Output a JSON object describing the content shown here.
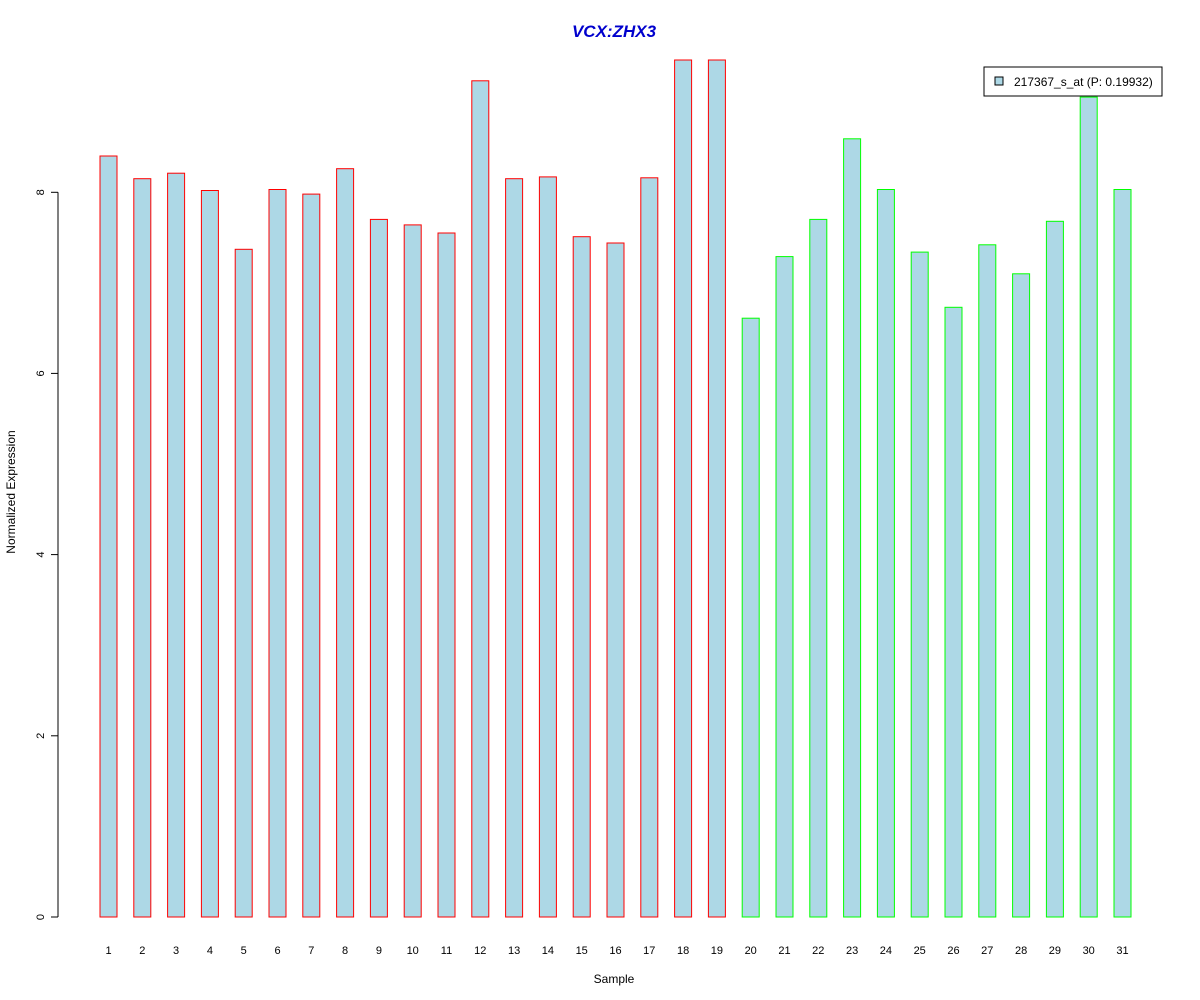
{
  "chart_data": {
    "type": "bar",
    "title": "VCX:ZHX3",
    "xlabel": "Sample",
    "ylabel": "Normalized Expression",
    "categories": [
      "1",
      "2",
      "3",
      "4",
      "5",
      "6",
      "7",
      "8",
      "9",
      "10",
      "11",
      "12",
      "13",
      "14",
      "15",
      "16",
      "17",
      "18",
      "19",
      "20",
      "21",
      "22",
      "23",
      "24",
      "25",
      "26",
      "27",
      "28",
      "29",
      "30",
      "31"
    ],
    "values": [
      8.4,
      8.15,
      8.21,
      8.02,
      7.37,
      8.03,
      7.98,
      8.26,
      7.7,
      7.64,
      7.55,
      9.23,
      8.15,
      8.17,
      7.51,
      7.44,
      8.16,
      9.46,
      9.46,
      6.61,
      7.29,
      7.7,
      8.59,
      8.03,
      7.34,
      6.73,
      7.42,
      7.1,
      7.68,
      9.05,
      8.03
    ],
    "groups": [
      "a",
      "a",
      "a",
      "a",
      "a",
      "a",
      "a",
      "a",
      "a",
      "a",
      "a",
      "a",
      "a",
      "a",
      "a",
      "a",
      "a",
      "a",
      "a",
      "b",
      "b",
      "b",
      "b",
      "b",
      "b",
      "b",
      "b",
      "b",
      "b",
      "b",
      "b"
    ],
    "ylim": [
      0,
      9.46
    ],
    "yticks": [
      "0",
      "2",
      "4",
      "6",
      "8"
    ],
    "legend": {
      "position": "top-right",
      "entries": [
        {
          "label": "217367_s_at (P: 0.19932)"
        }
      ]
    },
    "grid": false
  },
  "colors": {
    "bar_fill": "#add8e6",
    "border_group_a": "#ff0000",
    "border_group_b": "#00ff00",
    "title": "#0000cd",
    "axis": "#000000"
  }
}
